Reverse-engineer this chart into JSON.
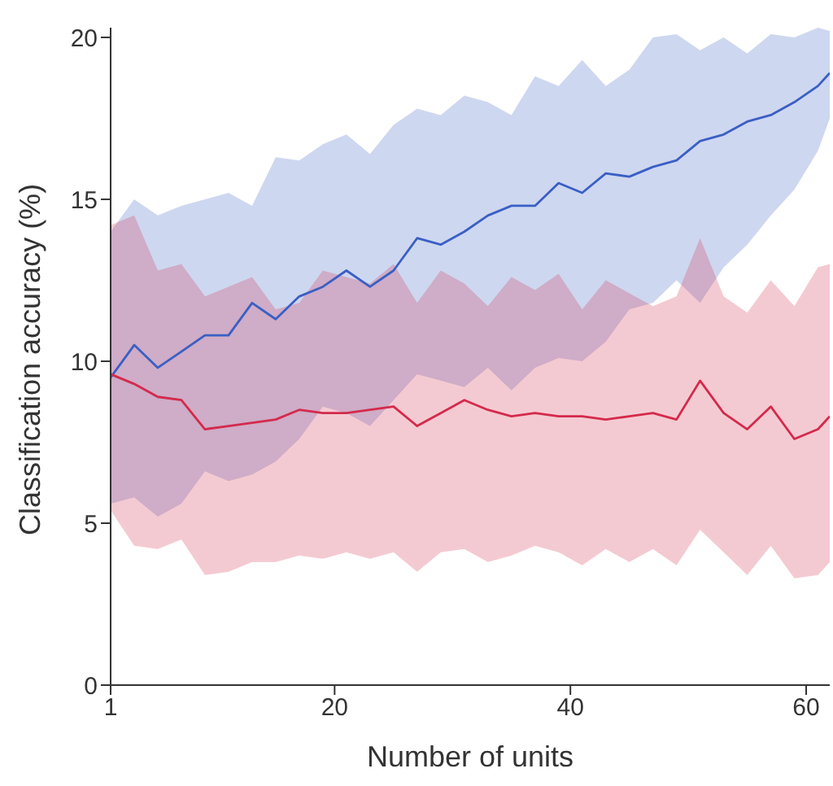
{
  "chart_data": {
    "type": "line",
    "xlabel": "Number of units",
    "ylabel": "Classification accuracy (%)",
    "x": [
      1,
      3,
      5,
      7,
      9,
      11,
      13,
      15,
      17,
      19,
      21,
      23,
      25,
      27,
      29,
      31,
      33,
      35,
      37,
      39,
      41,
      43,
      45,
      47,
      49,
      51,
      53,
      55,
      57,
      59,
      61,
      62
    ],
    "series": [
      {
        "color": "#3a5fc4",
        "values": [
          9.5,
          10.5,
          9.8,
          10.3,
          10.8,
          10.8,
          11.8,
          11.3,
          12,
          12.3,
          12.8,
          12.3,
          12.8,
          13.8,
          13.6,
          14,
          14.5,
          14.8,
          14.8,
          15.5,
          15.2,
          15.8,
          15.7,
          16,
          16.2,
          16.8,
          17,
          17.4,
          17.6,
          18,
          18.5,
          18.9
        ],
        "lower": [
          5.6,
          5.8,
          5.2,
          5.6,
          6.6,
          6.3,
          6.5,
          6.9,
          7.6,
          8.6,
          8.4,
          8,
          8.8,
          9.6,
          9.4,
          9.2,
          9.8,
          9.1,
          9.8,
          10.1,
          10,
          10.6,
          11.6,
          11.8,
          12.5,
          11.8,
          12.9,
          13.6,
          14.5,
          15.3,
          16.5,
          17.5
        ],
        "upper": [
          14,
          15,
          14.5,
          14.8,
          15,
          15.2,
          14.8,
          16.3,
          16.2,
          16.7,
          17,
          16.4,
          17.3,
          17.8,
          17.6,
          18.2,
          18,
          17.6,
          18.8,
          18.5,
          19.3,
          18.5,
          19,
          20,
          20.1,
          19.6,
          20,
          19.5,
          20.1,
          20,
          20.3,
          20.2
        ]
      },
      {
        "color": "#d42a4c",
        "values": [
          9.6,
          9.3,
          8.9,
          8.8,
          7.9,
          8,
          8.1,
          8.2,
          8.5,
          8.4,
          8.4,
          8.5,
          8.6,
          8,
          8.4,
          8.8,
          8.5,
          8.3,
          8.4,
          8.3,
          8.3,
          8.2,
          8.3,
          8.4,
          8.2,
          9.4,
          8.4,
          7.9,
          8.6,
          7.6,
          7.9,
          8.3
        ],
        "lower": [
          5.4,
          4.3,
          4.2,
          4.5,
          3.4,
          3.5,
          3.8,
          3.8,
          4,
          3.9,
          4.1,
          3.9,
          4.1,
          3.5,
          4.1,
          4.2,
          3.8,
          4,
          4.3,
          4.1,
          3.7,
          4.2,
          3.8,
          4.2,
          3.7,
          4.8,
          4.1,
          3.4,
          4.3,
          3.3,
          3.4,
          3.8
        ],
        "upper": [
          14.2,
          14.5,
          12.8,
          13,
          12,
          12.3,
          12.6,
          11.6,
          11.8,
          12.8,
          12.6,
          12.4,
          13,
          11.8,
          12.8,
          12.4,
          11.7,
          12.6,
          12.2,
          12.7,
          11.6,
          12.5,
          12.1,
          11.7,
          12,
          13.8,
          12,
          11.5,
          12.5,
          11.7,
          12.9,
          13
        ]
      }
    ],
    "xlim": [
      1,
      62
    ],
    "xticks": [
      1,
      20,
      40,
      60
    ],
    "ylim": [
      0,
      20.3
    ],
    "yticks": [
      0,
      5,
      10,
      15,
      20
    ],
    "grid": false,
    "marker": "none",
    "line_style": "solid"
  }
}
